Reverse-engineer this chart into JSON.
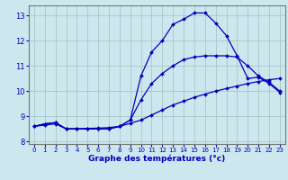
{
  "xlabel": "Graphe des températures (°c)",
  "xlim": [
    -0.5,
    23.5
  ],
  "ylim": [
    7.9,
    13.4
  ],
  "yticks": [
    8,
    9,
    10,
    11,
    12,
    13
  ],
  "xticks": [
    0,
    1,
    2,
    3,
    4,
    5,
    6,
    7,
    8,
    9,
    10,
    11,
    12,
    13,
    14,
    15,
    16,
    17,
    18,
    19,
    20,
    21,
    22,
    23
  ],
  "bg_color": "#cce8ee",
  "grid_color": "#aacccc",
  "line_color": "#0000bb",
  "series1_x": [
    0,
    1,
    2,
    3,
    4,
    5,
    6,
    7,
    8,
    9,
    10,
    11,
    12,
    13,
    14,
    15,
    16,
    17,
    18,
    19,
    20,
    21,
    22,
    23
  ],
  "series1_y": [
    8.6,
    8.7,
    8.75,
    8.5,
    8.5,
    8.5,
    8.5,
    8.5,
    8.6,
    8.85,
    10.6,
    11.55,
    12.0,
    12.65,
    12.85,
    13.1,
    13.1,
    12.7,
    12.2,
    11.4,
    10.5,
    10.55,
    10.3,
    9.95
  ],
  "series2_x": [
    0,
    1,
    2,
    3,
    4,
    5,
    6,
    7,
    8,
    9,
    10,
    11,
    12,
    13,
    14,
    15,
    16,
    17,
    18,
    19,
    20,
    21,
    22,
    23
  ],
  "series2_y": [
    8.6,
    8.7,
    8.75,
    8.5,
    8.5,
    8.5,
    8.5,
    8.5,
    8.6,
    8.85,
    9.65,
    10.3,
    10.7,
    11.0,
    11.25,
    11.35,
    11.4,
    11.4,
    11.4,
    11.35,
    11.0,
    10.6,
    10.35,
    10.0
  ],
  "series3_x": [
    0,
    1,
    2,
    3,
    4,
    5,
    6,
    7,
    8,
    9,
    10,
    11,
    12,
    13,
    14,
    15,
    16,
    17,
    18,
    19,
    20,
    21,
    22,
    23
  ],
  "series3_y": [
    8.6,
    8.65,
    8.7,
    8.5,
    8.5,
    8.52,
    8.53,
    8.55,
    8.6,
    8.72,
    8.85,
    9.05,
    9.25,
    9.45,
    9.6,
    9.75,
    9.88,
    10.0,
    10.1,
    10.2,
    10.3,
    10.38,
    10.45,
    10.5
  ]
}
